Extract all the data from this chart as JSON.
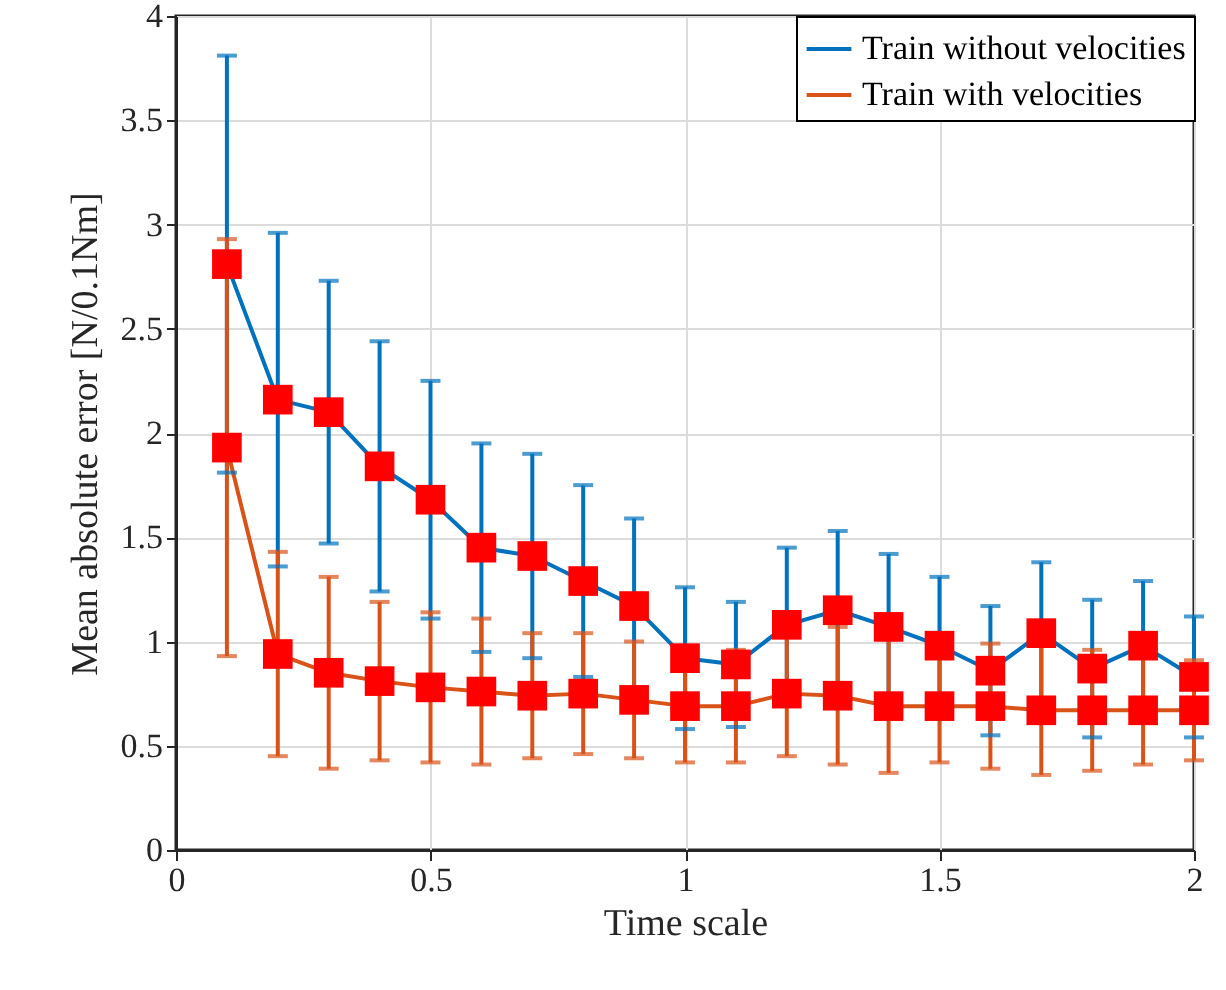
{
  "chart_data": {
    "type": "line",
    "xlabel": "Time scale",
    "ylabel": "Mean absolute error [N/0.1Nm]",
    "x": [
      0.1,
      0.2,
      0.3,
      0.4,
      0.5,
      0.6,
      0.7,
      0.8,
      0.9,
      1.0,
      1.1,
      1.2,
      1.3,
      1.4,
      1.5,
      1.6,
      1.7,
      1.8,
      1.9,
      2.0
    ],
    "series": [
      {
        "name": "Train without velocities",
        "color": "#0072bd",
        "values": [
          2.81,
          2.16,
          2.1,
          1.84,
          1.68,
          1.45,
          1.41,
          1.29,
          1.17,
          0.92,
          0.89,
          1.08,
          1.15,
          1.07,
          0.98,
          0.86,
          1.04,
          0.87,
          0.98,
          0.83
        ],
        "errors": [
          1.0,
          0.8,
          0.63,
          0.6,
          0.57,
          0.5,
          0.49,
          0.46,
          0.42,
          0.34,
          0.3,
          0.37,
          0.38,
          0.35,
          0.33,
          0.31,
          0.34,
          0.33,
          0.31,
          0.29
        ]
      },
      {
        "name": "Train with velocities",
        "color": "#d95319",
        "values": [
          1.93,
          0.94,
          0.85,
          0.81,
          0.78,
          0.76,
          0.74,
          0.75,
          0.72,
          0.69,
          0.69,
          0.75,
          0.74,
          0.69,
          0.69,
          0.69,
          0.67,
          0.67,
          0.67,
          0.67
        ],
        "errors": [
          1.0,
          0.49,
          0.46,
          0.38,
          0.36,
          0.35,
          0.3,
          0.29,
          0.28,
          0.27,
          0.27,
          0.3,
          0.33,
          0.32,
          0.27,
          0.3,
          0.31,
          0.29,
          0.26,
          0.24
        ]
      }
    ],
    "xlim": [
      0,
      2
    ],
    "xticks": [
      0,
      0.5,
      1,
      1.5,
      2
    ],
    "ylim": [
      0,
      4
    ],
    "yticks": [
      0,
      0.5,
      1,
      1.5,
      2,
      2.5,
      3,
      3.5,
      4
    ],
    "grid": true,
    "legend": "top right",
    "marker": "square",
    "line_style": "solid"
  }
}
